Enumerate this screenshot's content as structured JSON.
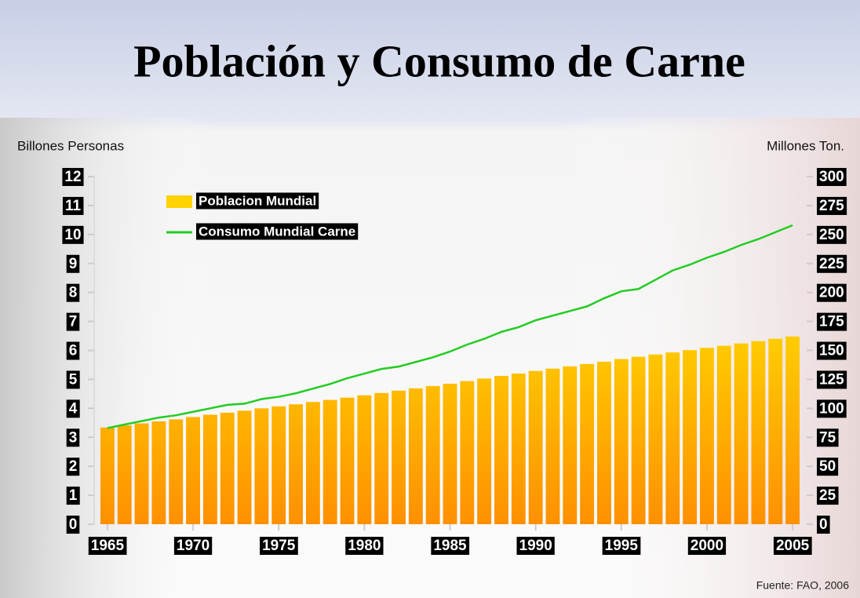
{
  "chart_data": {
    "type": "bar",
    "title": "Población y Consumo de Carne",
    "y_label": "Billones Personas",
    "y2_label": "Millones Ton.",
    "source": "Fuente: FAO, 2006",
    "x": [
      1965,
      1966,
      1967,
      1968,
      1969,
      1970,
      1971,
      1972,
      1973,
      1974,
      1975,
      1976,
      1977,
      1978,
      1979,
      1980,
      1981,
      1982,
      1983,
      1984,
      1985,
      1986,
      1987,
      1988,
      1989,
      1990,
      1991,
      1992,
      1993,
      1994,
      1995,
      1996,
      1997,
      1998,
      1999,
      2000,
      2001,
      2002,
      2003,
      2004,
      2005
    ],
    "xlim": [
      1964.5,
      2005.5
    ],
    "xticks": [
      1965,
      1970,
      1975,
      1980,
      1985,
      1990,
      1995,
      2000,
      2005
    ],
    "ylim": [
      0,
      12
    ],
    "yticks": [
      0,
      1,
      2,
      3,
      4,
      5,
      6,
      7,
      8,
      9,
      10,
      11,
      12
    ],
    "y2lim": [
      0,
      300
    ],
    "y2ticks": [
      0,
      25,
      50,
      75,
      100,
      125,
      150,
      175,
      200,
      225,
      250,
      275,
      300
    ],
    "legend": "upper left",
    "series": [
      {
        "name": "Poblacion Mundial",
        "type": "bar",
        "color": "#ffd200",
        "values": [
          3.34,
          3.41,
          3.48,
          3.55,
          3.62,
          3.7,
          3.78,
          3.85,
          3.92,
          4.0,
          4.07,
          4.14,
          4.22,
          4.29,
          4.37,
          4.45,
          4.53,
          4.61,
          4.69,
          4.77,
          4.85,
          4.94,
          5.03,
          5.12,
          5.2,
          5.29,
          5.37,
          5.45,
          5.53,
          5.61,
          5.7,
          5.78,
          5.86,
          5.93,
          6.01,
          6.09,
          6.16,
          6.24,
          6.32,
          6.4,
          6.48
        ]
      },
      {
        "name": "Consumo Mundial Carne",
        "type": "line",
        "axis": "y2",
        "color": "#22cc22",
        "values": [
          83,
          86,
          89,
          92,
          94,
          97,
          100,
          103,
          104,
          108,
          110,
          113,
          117,
          121,
          126,
          130,
          134,
          136,
          140,
          144,
          149,
          155,
          160,
          166,
          170,
          176,
          180,
          184,
          188,
          195,
          201,
          203,
          211,
          219,
          224,
          230,
          235,
          241,
          246,
          252,
          258
        ]
      }
    ]
  }
}
